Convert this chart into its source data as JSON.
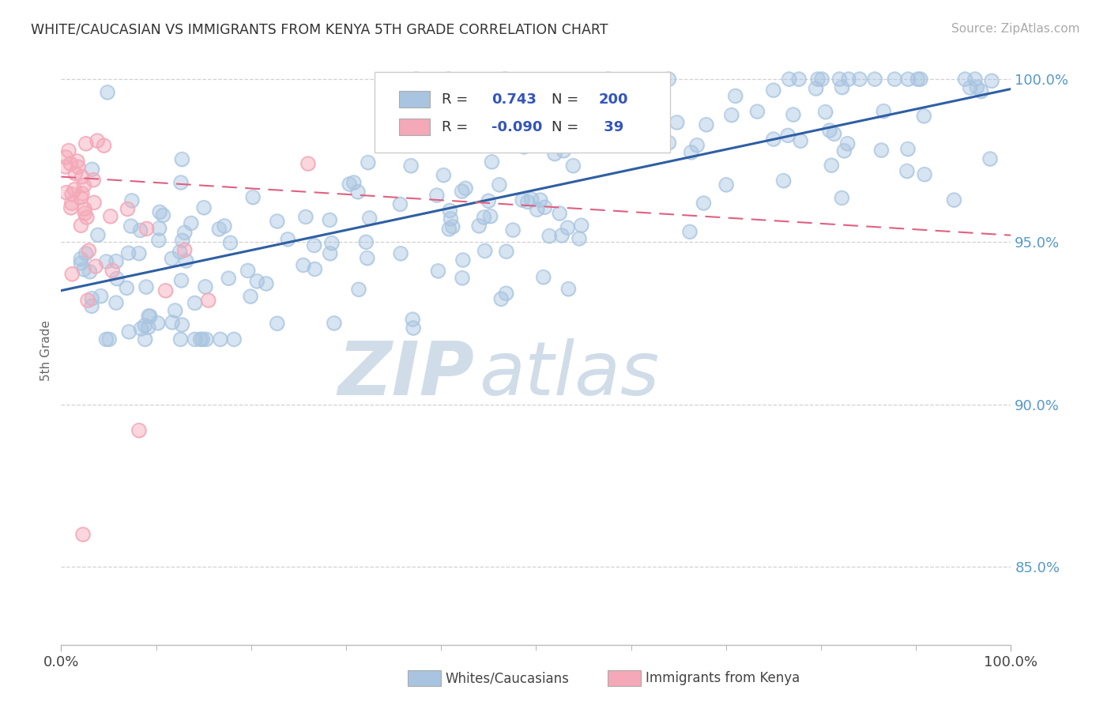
{
  "title": "WHITE/CAUCASIAN VS IMMIGRANTS FROM KENYA 5TH GRADE CORRELATION CHART",
  "source_text": "Source: ZipAtlas.com",
  "ylabel": "5th Grade",
  "xlim": [
    0.0,
    1.0
  ],
  "ylim": [
    0.826,
    1.007
  ],
  "yticks": [
    0.85,
    0.9,
    0.95,
    1.0
  ],
  "ytick_labels": [
    "85.0%",
    "90.0%",
    "95.0%",
    "100.0%"
  ],
  "xtick_labels_left": "0.0%",
  "xtick_labels_right": "100.0%",
  "legend_r_blue": "0.743",
  "legend_n_blue": "200",
  "legend_r_pink": "-0.090",
  "legend_n_pink": " 39",
  "blue_marker_color": "#a8c4e0",
  "blue_line_color": "#2e5fa3",
  "pink_marker_color": "#f4a8b8",
  "pink_line_color": "#e06080",
  "watermark_zip": "ZIP",
  "watermark_atlas": "atlas",
  "watermark_color": "#d0dde8",
  "legend_value_color": "#3355bb",
  "legend_label_color": "#333333",
  "yaxis_color": "#5599cc",
  "title_color": "#333333",
  "source_color": "#aaaaaa",
  "bottom_legend_blue": "Whites/Caucasians",
  "bottom_legend_pink": "Immigrants from Kenya",
  "grid_color": "#cccccc",
  "spine_color": "#bbbbbb"
}
